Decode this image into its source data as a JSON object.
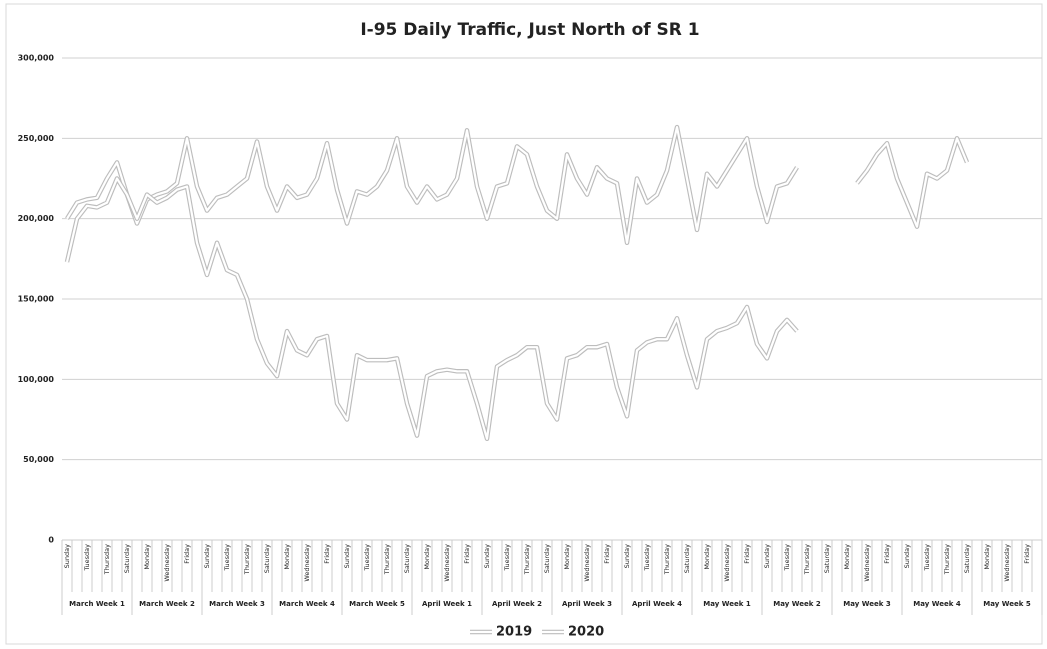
{
  "chart_data": {
    "type": "line",
    "title": "I-95 Daily Traffic, Just North of SR 1",
    "categories": [
      "Sunday",
      null,
      "Tuesday",
      null,
      "Thursday",
      null,
      "Saturday",
      null,
      "Monday",
      null,
      "Wednesday",
      null,
      "Friday",
      null,
      "Sunday",
      null,
      "Tuesday",
      null,
      "Thursday",
      null,
      "Saturday",
      null,
      "Monday",
      null,
      "Wednesday",
      null,
      "Friday",
      null,
      "Sunday",
      null,
      "Tuesday",
      null,
      "Thursday",
      null,
      "Saturday",
      null,
      "Monday",
      null,
      "Wednesday",
      null,
      "Friday",
      null,
      "Sunday",
      null,
      "Tuesday",
      null,
      "Thursday",
      null,
      "Saturday",
      null,
      "Monday",
      null,
      "Wednesday",
      null,
      "Friday",
      null,
      "Sunday",
      null,
      "Tuesday",
      null,
      "Thursday",
      null,
      "Saturday",
      null,
      "Monday",
      null,
      "Wednesday",
      null,
      "Friday",
      null,
      "Sunday",
      null,
      "Tuesday",
      null,
      "Thursday",
      null,
      "Saturday",
      null,
      "Monday",
      null,
      "Wednesday",
      null,
      "Friday",
      null,
      "Sunday",
      null,
      "Tuesday",
      null,
      "Thursday",
      null,
      "Saturday",
      null,
      "Monday",
      null,
      "Wednesday",
      null,
      "Friday",
      null
    ],
    "groups": [
      "March Week 1",
      "March Week 2",
      "March Week 3",
      "March Week 4",
      "March Week 5",
      "April Week 1",
      "April Week 2",
      "April Week 3",
      "April Week 4",
      "May Week 1",
      "May Week 2",
      "May Week 3",
      "May Week 4",
      "May Week 5"
    ],
    "series": [
      {
        "name": "2019",
        "color": "#ffffff",
        "values": [
          200000,
          210000,
          212000,
          213000,
          225000,
          235000,
          215000,
          197000,
          212000,
          215000,
          217000,
          222000,
          250000,
          220000,
          205000,
          213000,
          215000,
          220000,
          225000,
          248000,
          220000,
          205000,
          220000,
          213000,
          215000,
          225000,
          247000,
          218000,
          197000,
          217000,
          215000,
          220000,
          230000,
          250000,
          220000,
          210000,
          220000,
          212000,
          215000,
          225000,
          255000,
          220000,
          200000,
          220000,
          222000,
          245000,
          240000,
          220000,
          205000,
          200000,
          240000,
          225000,
          215000,
          232000,
          225000,
          222000,
          185000,
          225000,
          210000,
          215000,
          230000,
          257000,
          225000,
          193000,
          228000,
          220000,
          230000,
          240000,
          250000,
          220000,
          198000,
          220000,
          222000,
          232000,
          null,
          null,
          null,
          null,
          null,
          222000,
          230000,
          240000,
          247000,
          225000,
          210000,
          195000,
          228000,
          225000,
          230000,
          250000,
          235000,
          null,
          null,
          null,
          null,
          null,
          null,
          null
        ]
      },
      {
        "name": "2020",
        "color": "#ffffff",
        "values": [
          173000,
          200000,
          208000,
          207000,
          210000,
          225000,
          215000,
          200000,
          215000,
          210000,
          213000,
          218000,
          220000,
          185000,
          165000,
          185000,
          168000,
          165000,
          150000,
          125000,
          110000,
          102000,
          130000,
          118000,
          115000,
          125000,
          127000,
          85000,
          75000,
          115000,
          112000,
          112000,
          112000,
          113000,
          85000,
          65000,
          102000,
          105000,
          106000,
          105000,
          105000,
          85000,
          63000,
          108000,
          112000,
          115000,
          120000,
          120000,
          85000,
          75000,
          113000,
          115000,
          120000,
          120000,
          122000,
          95000,
          77000,
          118000,
          123000,
          125000,
          125000,
          138000,
          115000,
          95000,
          125000,
          130000,
          132000,
          135000,
          145000,
          122000,
          113000,
          130000,
          137000,
          130000,
          null,
          null,
          null,
          null,
          null,
          null,
          null,
          null,
          null,
          null,
          null,
          null,
          null,
          null,
          null,
          null,
          null,
          null,
          null,
          null,
          null,
          null,
          null,
          null
        ]
      }
    ],
    "ylim": [
      0,
      300000
    ],
    "yticks": [
      0,
      {
        "value": 50000,
        "label": "50,000"
      },
      {
        "value": 100000,
        "label": "100,000"
      },
      {
        "value": 150000,
        "label": "150,000"
      },
      {
        "value": 200000,
        "label": "200,000"
      },
      {
        "value": 250000,
        "label": "250,000"
      },
      {
        "value": 300000,
        "label": "300,000"
      }
    ],
    "grid": true,
    "legend": "bottom"
  }
}
